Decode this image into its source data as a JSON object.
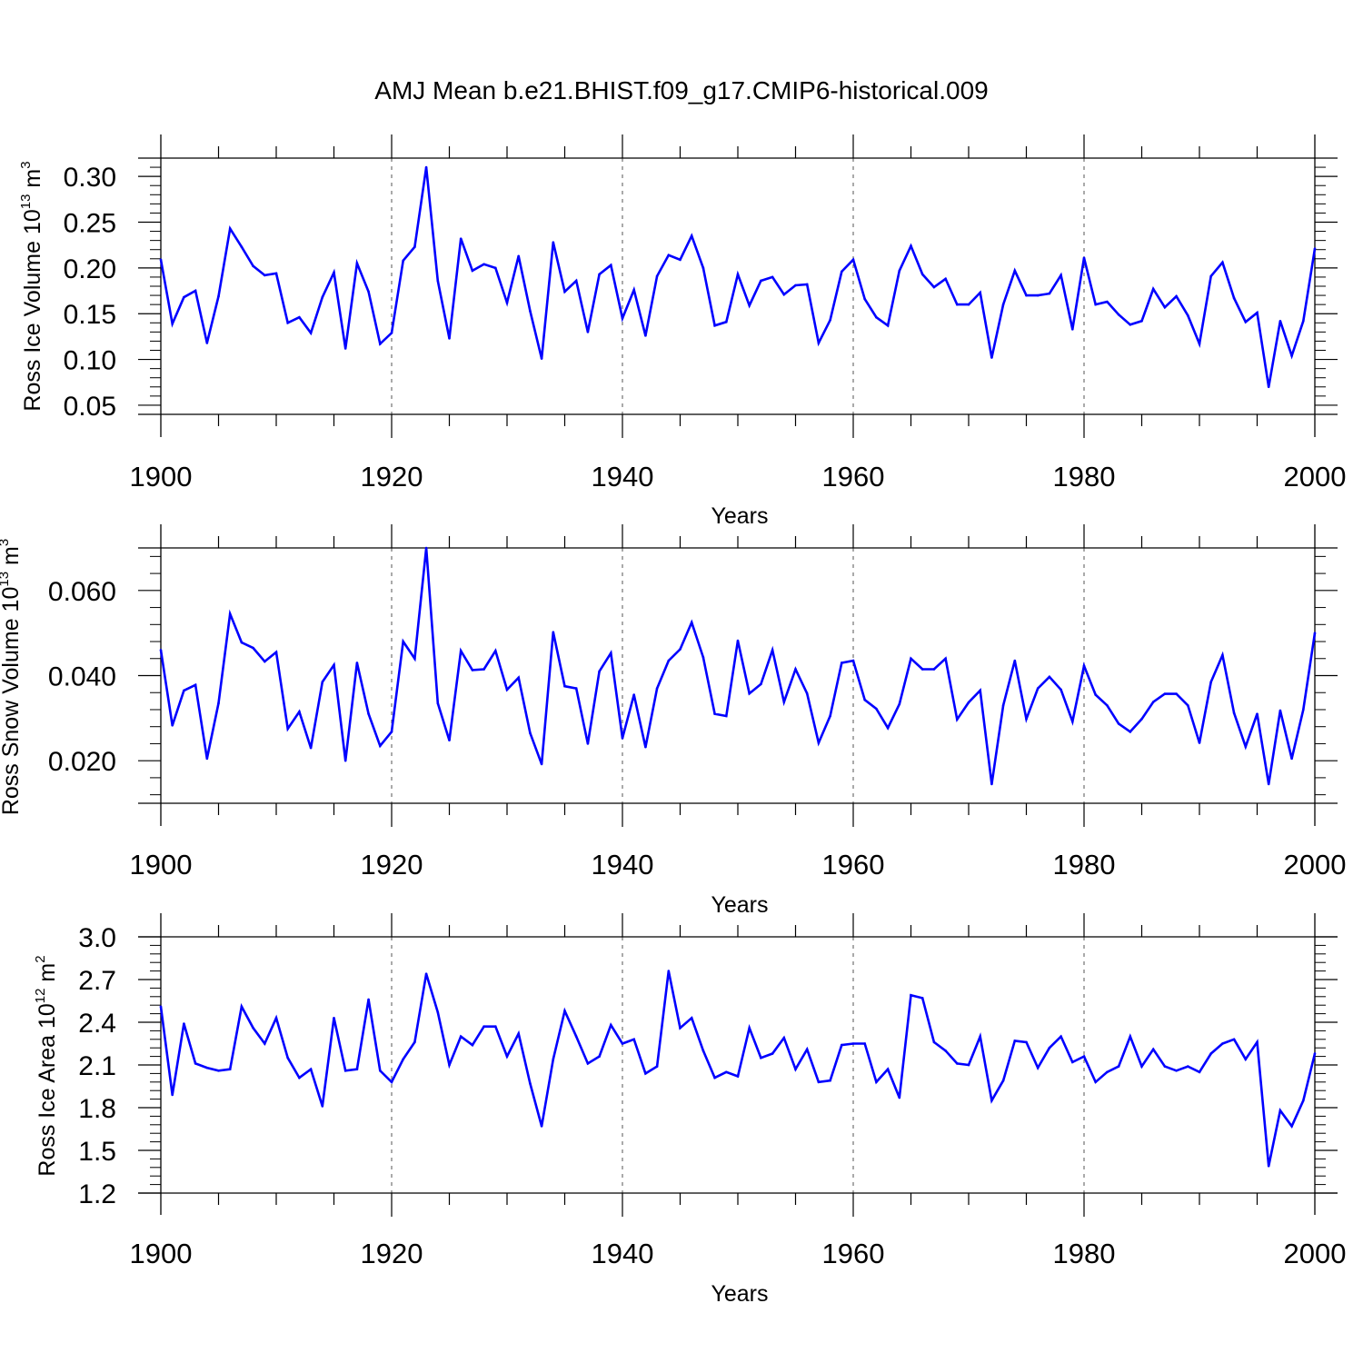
{
  "title": "AMJ Mean b.e21.BHIST.f09_g17.CMIP6-historical.009",
  "colors": {
    "line": "#0000ff",
    "axes": "#000000",
    "grid": "#555555"
  },
  "chart_data": [
    {
      "type": "line",
      "ylabel": "Ross Ice Volume 10",
      "ylabel_sup": "13",
      "ylabel_unit": " m",
      "ylabel_unit_sup": "3",
      "xlabel": "Years",
      "xlim": [
        1900,
        2000
      ],
      "ylim": [
        0.04,
        0.32
      ],
      "yticks": [
        0.05,
        0.1,
        0.15,
        0.2,
        0.25,
        0.3
      ],
      "ytick_labels": [
        "0.05",
        "0.10",
        "0.15",
        "0.20",
        "0.25",
        "0.30"
      ],
      "xticks": [
        1900,
        1920,
        1940,
        1960,
        1980,
        2000
      ],
      "xtick_labels": [
        "1900",
        "1920",
        "1940",
        "1960",
        "1980",
        "2000"
      ],
      "vgrid": [
        1920,
        1940,
        1960,
        1980
      ],
      "x_start": 1900,
      "values": [
        0.209,
        0.139,
        0.168,
        0.175,
        0.118,
        0.169,
        0.243,
        0.223,
        0.202,
        0.192,
        0.194,
        0.14,
        0.146,
        0.129,
        0.168,
        0.195,
        0.112,
        0.205,
        0.174,
        0.117,
        0.129,
        0.208,
        0.223,
        0.31,
        0.186,
        0.123,
        0.232,
        0.197,
        0.204,
        0.2,
        0.162,
        0.213,
        0.153,
        0.101,
        0.228,
        0.174,
        0.186,
        0.13,
        0.193,
        0.203,
        0.145,
        0.176,
        0.126,
        0.191,
        0.214,
        0.209,
        0.235,
        0.2,
        0.137,
        0.141,
        0.193,
        0.159,
        0.186,
        0.19,
        0.171,
        0.181,
        0.182,
        0.118,
        0.143,
        0.196,
        0.209,
        0.166,
        0.146,
        0.137,
        0.197,
        0.224,
        0.193,
        0.179,
        0.188,
        0.16,
        0.16,
        0.173,
        0.102,
        0.16,
        0.197,
        0.17,
        0.17,
        0.172,
        0.192,
        0.133,
        0.211,
        0.16,
        0.163,
        0.149,
        0.138,
        0.142,
        0.177,
        0.157,
        0.169,
        0.148,
        0.117,
        0.191,
        0.206,
        0.167,
        0.141,
        0.151,
        0.07,
        0.142,
        0.104,
        0.142,
        0.221
      ]
    },
    {
      "type": "line",
      "ylabel": "Ross Snow Volume 10",
      "ylabel_sup": "13",
      "ylabel_unit": " m",
      "ylabel_unit_sup": "3",
      "xlabel": "Years",
      "xlim": [
        1900,
        2000
      ],
      "ylim": [
        0.01,
        0.07
      ],
      "yticks": [
        0.02,
        0.04,
        0.06
      ],
      "ytick_labels": [
        "0.020",
        "0.040",
        "0.060"
      ],
      "xticks": [
        1900,
        1920,
        1940,
        1960,
        1980,
        2000
      ],
      "xtick_labels": [
        "1900",
        "1920",
        "1940",
        "1960",
        "1980",
        "2000"
      ],
      "vgrid": [
        1920,
        1940,
        1960,
        1980
      ],
      "x_start": 1900,
      "values": [
        0.046,
        0.0283,
        0.0365,
        0.0378,
        0.0205,
        0.0335,
        0.0545,
        0.0478,
        0.0465,
        0.0433,
        0.0455,
        0.0275,
        0.0315,
        0.023,
        0.0385,
        0.0425,
        0.02,
        0.043,
        0.031,
        0.0235,
        0.0268,
        0.048,
        0.044,
        0.07,
        0.0335,
        0.0248,
        0.0458,
        0.0413,
        0.0415,
        0.0458,
        0.0367,
        0.0395,
        0.0265,
        0.0192,
        0.0502,
        0.0375,
        0.037,
        0.024,
        0.041,
        0.0453,
        0.0253,
        0.0355,
        0.0232,
        0.037,
        0.0435,
        0.0462,
        0.0525,
        0.0443,
        0.031,
        0.0305,
        0.0482,
        0.0358,
        0.038,
        0.046,
        0.0338,
        0.0415,
        0.0358,
        0.0242,
        0.0305,
        0.043,
        0.0435,
        0.0343,
        0.0322,
        0.0277,
        0.0333,
        0.044,
        0.0415,
        0.0415,
        0.044,
        0.0297,
        0.0337,
        0.0365,
        0.0145,
        0.033,
        0.0435,
        0.0298,
        0.037,
        0.0397,
        0.0367,
        0.0292,
        0.0423,
        0.0355,
        0.033,
        0.0287,
        0.0268,
        0.0298,
        0.0338,
        0.0357,
        0.0357,
        0.033,
        0.0242,
        0.0385,
        0.0448,
        0.0312,
        0.0233,
        0.031,
        0.0145,
        0.0318,
        0.0205,
        0.032,
        0.05
      ]
    },
    {
      "type": "line",
      "ylabel": "Ross Ice Area 10",
      "ylabel_sup": "12",
      "ylabel_unit": " m",
      "ylabel_unit_sup": "2",
      "xlabel": "Years",
      "xlim": [
        1900,
        2000
      ],
      "ylim": [
        1.2,
        3.0
      ],
      "yticks": [
        1.2,
        1.5,
        1.8,
        2.1,
        2.4,
        2.7,
        3.0
      ],
      "ytick_labels": [
        "1.2",
        "1.5",
        "1.8",
        "2.1",
        "2.4",
        "2.7",
        "3.0"
      ],
      "xticks": [
        1900,
        1920,
        1940,
        1960,
        1980,
        2000
      ],
      "xtick_labels": [
        "1900",
        "1920",
        "1940",
        "1960",
        "1980",
        "2000"
      ],
      "vgrid": [
        1920,
        1940,
        1960,
        1980
      ],
      "x_start": 1900,
      "values": [
        2.51,
        1.89,
        2.39,
        2.11,
        2.08,
        2.06,
        2.07,
        2.51,
        2.36,
        2.25,
        2.43,
        2.15,
        2.01,
        2.07,
        1.81,
        2.43,
        2.06,
        2.07,
        2.56,
        2.06,
        1.98,
        2.14,
        2.26,
        2.74,
        2.47,
        2.1,
        2.3,
        2.24,
        2.37,
        2.37,
        2.16,
        2.32,
        1.97,
        1.67,
        2.14,
        2.48,
        2.3,
        2.11,
        2.16,
        2.38,
        2.25,
        2.28,
        2.04,
        2.09,
        2.76,
        2.36,
        2.43,
        2.2,
        2.01,
        2.05,
        2.02,
        2.36,
        2.15,
        2.18,
        2.29,
        2.07,
        2.21,
        1.98,
        1.99,
        2.24,
        2.25,
        2.25,
        1.98,
        2.07,
        1.87,
        2.59,
        2.57,
        2.26,
        2.2,
        2.11,
        2.1,
        2.3,
        1.85,
        1.99,
        2.27,
        2.26,
        2.08,
        2.22,
        2.3,
        2.12,
        2.16,
        1.98,
        2.05,
        2.09,
        2.3,
        2.09,
        2.21,
        2.09,
        2.06,
        2.09,
        2.05,
        2.18,
        2.25,
        2.28,
        2.14,
        2.26,
        1.39,
        1.78,
        1.67,
        1.85,
        2.18
      ]
    }
  ]
}
